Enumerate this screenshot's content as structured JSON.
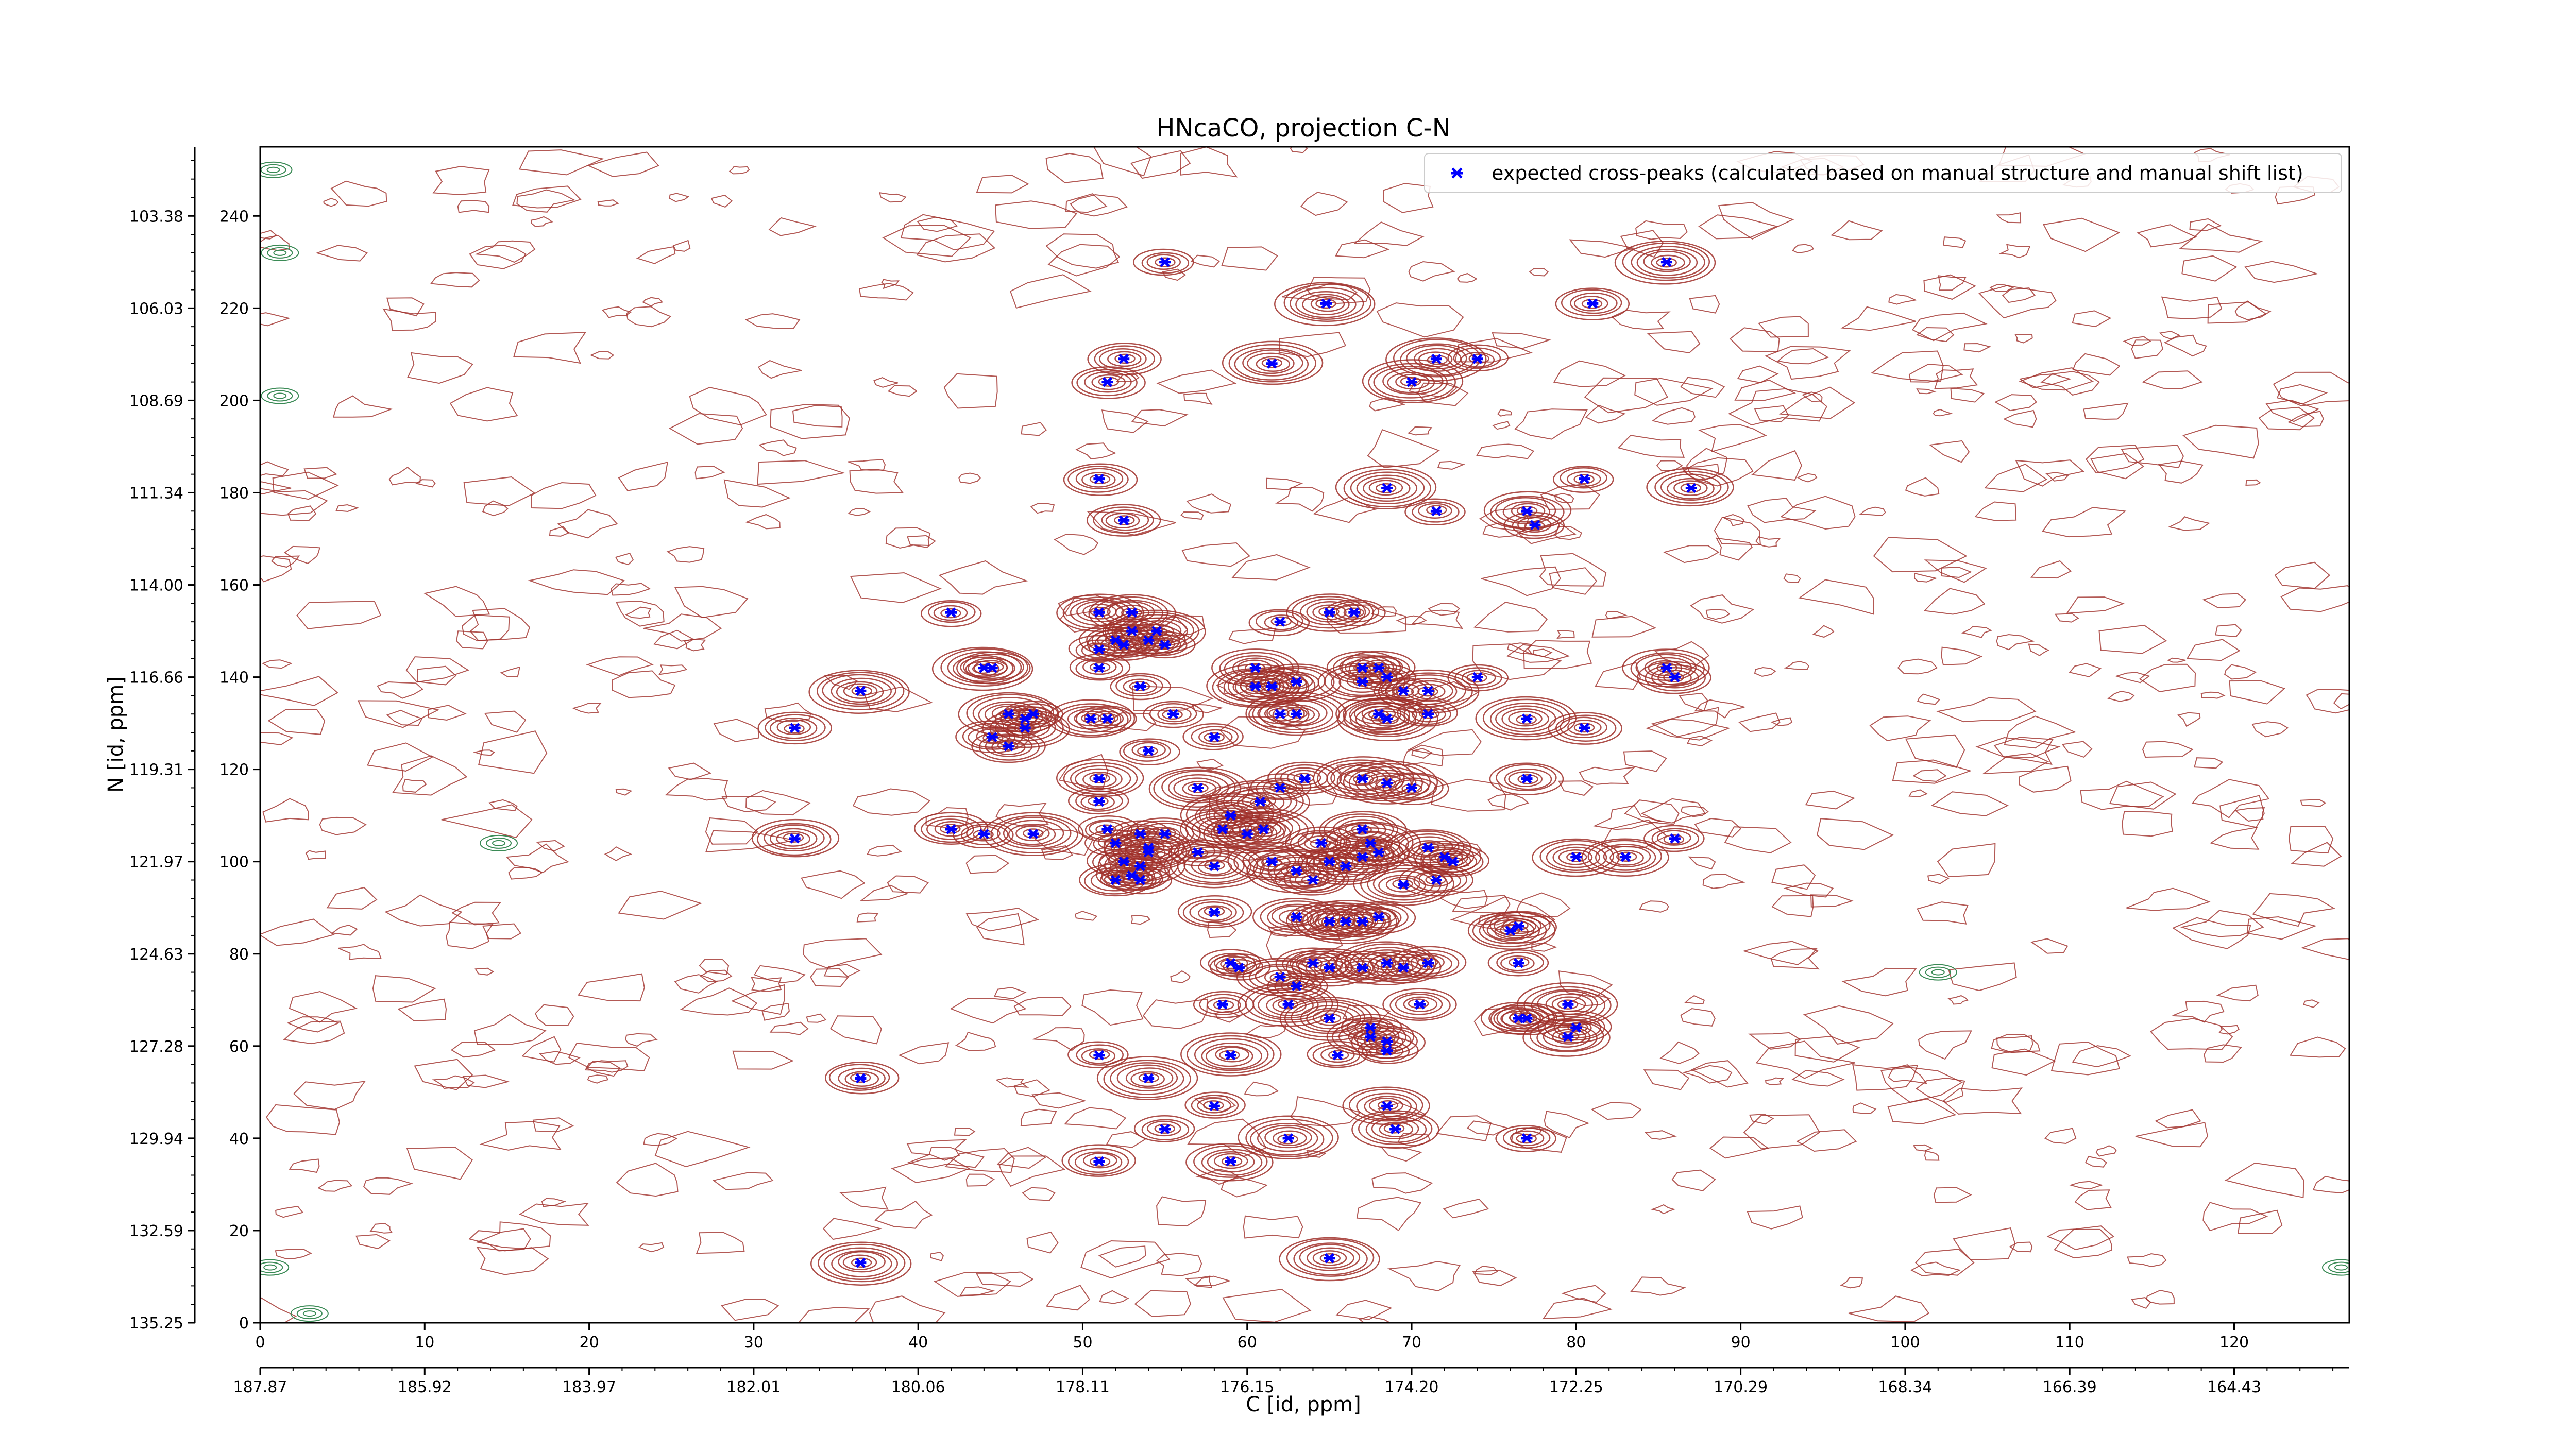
{
  "chart_data": {
    "type": "scatter",
    "title": "HNcaCO, projection C-N",
    "xlabel": "C [id, ppm]",
    "ylabel": "N [id, ppm]",
    "xlim": [
      0,
      127
    ],
    "ylim": [
      0,
      255
    ],
    "x_index_ticks": [
      0,
      10,
      20,
      30,
      40,
      50,
      60,
      70,
      80,
      90,
      100,
      110,
      120
    ],
    "x_index_tick_labels": [
      "0",
      "10",
      "20",
      "30",
      "40",
      "50",
      "60",
      "70",
      "80",
      "90",
      "100",
      "110",
      "120"
    ],
    "x_ppm_ticks": [
      0,
      10,
      20,
      30,
      40,
      50,
      60,
      70,
      80,
      90,
      100,
      110,
      120
    ],
    "x_ppm_tick_labels": [
      "187.87",
      "185.92",
      "183.97",
      "182.01",
      "180.06",
      "178.11",
      "176.15",
      "174.20",
      "172.25",
      "170.29",
      "168.34",
      "166.39",
      "164.43"
    ],
    "y_index_ticks": [
      0,
      20,
      40,
      60,
      80,
      100,
      120,
      140,
      160,
      180,
      200,
      220,
      240
    ],
    "y_index_tick_labels": [
      "0",
      "20",
      "40",
      "60",
      "80",
      "100",
      "120",
      "140",
      "160",
      "180",
      "200",
      "220",
      "240"
    ],
    "y_ppm_ticks": [
      0,
      20,
      40,
      60,
      80,
      100,
      120,
      140,
      160,
      180,
      200,
      220,
      240
    ],
    "y_ppm_tick_labels": [
      "135.25",
      "132.59",
      "129.94",
      "127.28",
      "124.63",
      "121.97",
      "119.31",
      "116.66",
      "114.00",
      "111.34",
      "108.69",
      "106.03",
      "103.38"
    ],
    "grid": false,
    "legend_position": "top-right",
    "series": [
      {
        "name": "expected cross-peaks (calculated based on manual structure and manual shift list)",
        "color": "#0000ff",
        "marker": "x",
        "points": [
          [
            55,
            230
          ],
          [
            64.8,
            221
          ],
          [
            81,
            221
          ],
          [
            85.5,
            230
          ],
          [
            52.5,
            209
          ],
          [
            61.5,
            208
          ],
          [
            51.5,
            204
          ],
          [
            70,
            204
          ],
          [
            71.5,
            209
          ],
          [
            74,
            209
          ],
          [
            51,
            183
          ],
          [
            52.5,
            174
          ],
          [
            68.5,
            181
          ],
          [
            71.5,
            176
          ],
          [
            80.5,
            183
          ],
          [
            87,
            181
          ],
          [
            77,
            176
          ],
          [
            77.5,
            173
          ],
          [
            42,
            154
          ],
          [
            51,
            154
          ],
          [
            53,
            154
          ],
          [
            65,
            154
          ],
          [
            62,
            152
          ],
          [
            66.5,
            154
          ],
          [
            52,
            148
          ],
          [
            53,
            150
          ],
          [
            54.5,
            150
          ],
          [
            51,
            146
          ],
          [
            52.5,
            147
          ],
          [
            54,
            148
          ],
          [
            55,
            147
          ],
          [
            51,
            142
          ],
          [
            44,
            142
          ],
          [
            44.5,
            142
          ],
          [
            60.5,
            142
          ],
          [
            68,
            142
          ],
          [
            36.5,
            137
          ],
          [
            53.5,
            138
          ],
          [
            60.5,
            138
          ],
          [
            61.5,
            138
          ],
          [
            63,
            139
          ],
          [
            67,
            142
          ],
          [
            67,
            139
          ],
          [
            68.5,
            140
          ],
          [
            69.5,
            137
          ],
          [
            71,
            137
          ],
          [
            74,
            140
          ],
          [
            45.5,
            132
          ],
          [
            47,
            132
          ],
          [
            46.5,
            129
          ],
          [
            46.5,
            131
          ],
          [
            44.5,
            127
          ],
          [
            45.5,
            125
          ],
          [
            50.5,
            131
          ],
          [
            51.5,
            131
          ],
          [
            55.5,
            132
          ],
          [
            62,
            132
          ],
          [
            63,
            132
          ],
          [
            68,
            132
          ],
          [
            68.5,
            131
          ],
          [
            71,
            132
          ],
          [
            77,
            131
          ],
          [
            32.5,
            129
          ],
          [
            58,
            127
          ],
          [
            80.5,
            129
          ],
          [
            54,
            124
          ],
          [
            85.5,
            142
          ],
          [
            86,
            140
          ],
          [
            51,
            118
          ],
          [
            57,
            116
          ],
          [
            62,
            116
          ],
          [
            63.5,
            118
          ],
          [
            67,
            118
          ],
          [
            68.5,
            117
          ],
          [
            70,
            116
          ],
          [
            60.8,
            113
          ],
          [
            59,
            110
          ],
          [
            58.5,
            107
          ],
          [
            61,
            107
          ],
          [
            77,
            118
          ],
          [
            51,
            113
          ],
          [
            51.5,
            107
          ],
          [
            52,
            104
          ],
          [
            53.5,
            106
          ],
          [
            54,
            103
          ],
          [
            54,
            102
          ],
          [
            55,
            106
          ],
          [
            57,
            102
          ],
          [
            60,
            106
          ],
          [
            42,
            107
          ],
          [
            44,
            106
          ],
          [
            47,
            106
          ],
          [
            32.5,
            105
          ],
          [
            52.5,
            100
          ],
          [
            53,
            97
          ],
          [
            53.5,
            99
          ],
          [
            58,
            99
          ],
          [
            61.5,
            100
          ],
          [
            64.5,
            104
          ],
          [
            65,
            100
          ],
          [
            67,
            107
          ],
          [
            67.5,
            104
          ],
          [
            68,
            102
          ],
          [
            66,
            99
          ],
          [
            67,
            101
          ],
          [
            71,
            103
          ],
          [
            72,
            101
          ],
          [
            72.5,
            100
          ],
          [
            80,
            101
          ],
          [
            83,
            101
          ],
          [
            86,
            105
          ],
          [
            52,
            96
          ],
          [
            53.5,
            96
          ],
          [
            64,
            96
          ],
          [
            69.5,
            95
          ],
          [
            71.5,
            96
          ],
          [
            63,
            98
          ],
          [
            58,
            89
          ],
          [
            65,
            87
          ],
          [
            66,
            87
          ],
          [
            67,
            87
          ],
          [
            68,
            88
          ],
          [
            63,
            88
          ],
          [
            76,
            85
          ],
          [
            76.5,
            86
          ],
          [
            59,
            78
          ],
          [
            59.5,
            77
          ],
          [
            64,
            78
          ],
          [
            62,
            75
          ],
          [
            63,
            73
          ],
          [
            65,
            77
          ],
          [
            67,
            77
          ],
          [
            68.5,
            78
          ],
          [
            71,
            78
          ],
          [
            69.5,
            77
          ],
          [
            76.5,
            78
          ],
          [
            58.5,
            69
          ],
          [
            62.5,
            69
          ],
          [
            70.5,
            69
          ],
          [
            79.5,
            69
          ],
          [
            65,
            66
          ],
          [
            67.5,
            64
          ],
          [
            68.5,
            61
          ],
          [
            67.5,
            62
          ],
          [
            68.5,
            59
          ],
          [
            65.5,
            58
          ],
          [
            59,
            58
          ],
          [
            51,
            58
          ],
          [
            77,
            66
          ],
          [
            76.5,
            66
          ],
          [
            80,
            64
          ],
          [
            79.5,
            62
          ],
          [
            36.5,
            53
          ],
          [
            54,
            53
          ],
          [
            58,
            47
          ],
          [
            68.5,
            47
          ],
          [
            55,
            42
          ],
          [
            62.5,
            40
          ],
          [
            69,
            42
          ],
          [
            77,
            40
          ],
          [
            51,
            35
          ],
          [
            59,
            35
          ],
          [
            36.5,
            13
          ],
          [
            65,
            14
          ]
        ]
      }
    ]
  }
}
